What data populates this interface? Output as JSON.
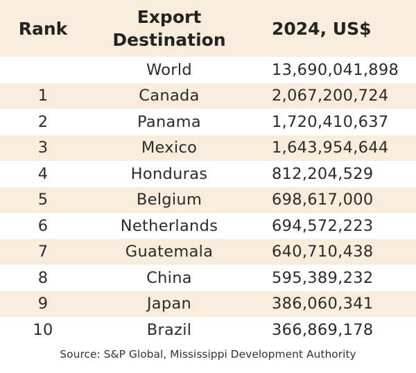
{
  "chart_data": {
    "type": "table",
    "columns": [
      "Rank",
      [
        "Export",
        "Destination"
      ],
      "2024, US$"
    ],
    "rows": [
      {
        "rank": "",
        "destination": "World",
        "value": "13,690,041,898"
      },
      {
        "rank": "1",
        "destination": "Canada",
        "value": "2,067,200,724"
      },
      {
        "rank": "2",
        "destination": "Panama",
        "value": "1,720,410,637"
      },
      {
        "rank": "3",
        "destination": "Mexico",
        "value": "1,643,954,644"
      },
      {
        "rank": "4",
        "destination": "Honduras",
        "value": "812,204,529"
      },
      {
        "rank": "5",
        "destination": "Belgium",
        "value": "698,617,000"
      },
      {
        "rank": "6",
        "destination": "Netherlands",
        "value": "694,572,223"
      },
      {
        "rank": "7",
        "destination": "Guatemala",
        "value": "640,710,438"
      },
      {
        "rank": "8",
        "destination": "China",
        "value": "595,389,232"
      },
      {
        "rank": "9",
        "destination": "Japan",
        "value": "386,060,341"
      },
      {
        "rank": "10",
        "destination": "Brazil",
        "value": "366,869,178"
      }
    ],
    "source": "Source: S&P Global, Mississippi Development Authority"
  },
  "colors": {
    "band": "#f8ecda",
    "text": "#2b2b2b"
  }
}
